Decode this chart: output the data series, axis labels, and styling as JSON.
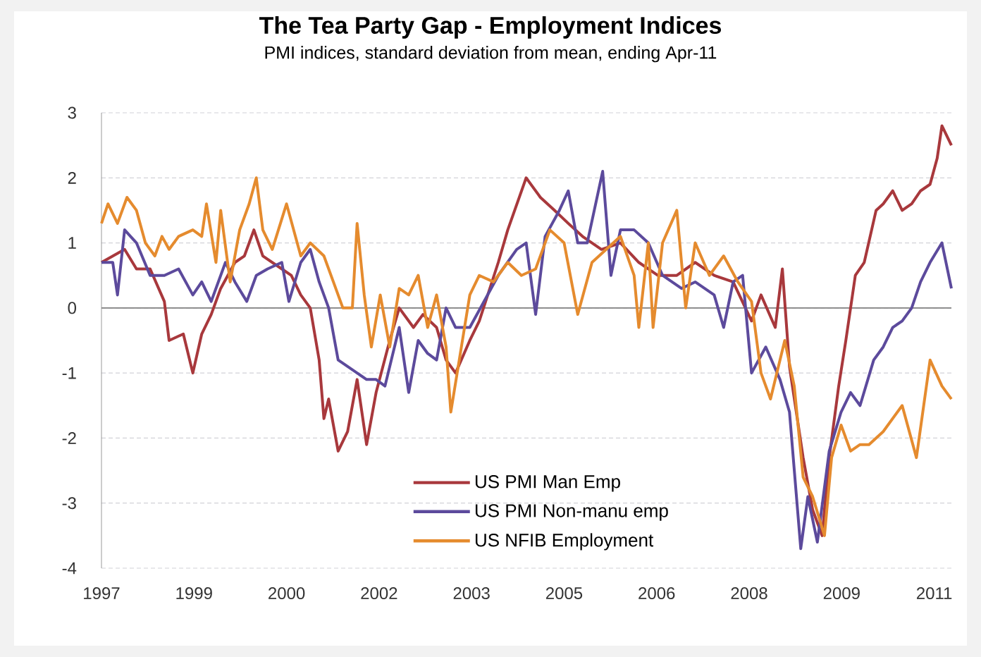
{
  "chart_data": {
    "type": "line",
    "title": "The Tea Party Gap - Employment Indices",
    "subtitle": "PMI indices, standard deviation from mean, ending Apr-11",
    "xlim": [
      1997.0,
      2011.33
    ],
    "xticks": [
      {
        "value": 1997.0,
        "label": "1997"
      },
      {
        "value": 1998.56,
        "label": "1999"
      },
      {
        "value": 2000.12,
        "label": "2000"
      },
      {
        "value": 2001.68,
        "label": "2002"
      },
      {
        "value": 2003.24,
        "label": "2003"
      },
      {
        "value": 2004.8,
        "label": "2005"
      },
      {
        "value": 2006.36,
        "label": "2006"
      },
      {
        "value": 2007.92,
        "label": "2008"
      },
      {
        "value": 2009.48,
        "label": "2009"
      },
      {
        "value": 2011.04,
        "label": "2011"
      }
    ],
    "ylim": [
      -4,
      3
    ],
    "yticks": [
      -4,
      -3,
      -2,
      -1,
      0,
      1,
      2,
      3
    ],
    "grid": "y",
    "legend": "bottom",
    "marker": "none",
    "line_style": "solid",
    "ref_lines": [
      {
        "axis": "y",
        "value": 0,
        "color": "#808080"
      }
    ],
    "series": [
      {
        "name": "US PMI Man Emp",
        "color": "#a8383c",
        "x": [
          1997.0,
          1997.39,
          1997.59,
          1997.82,
          1998.06,
          1998.14,
          1998.38,
          1998.54,
          1998.69,
          1998.85,
          1999.01,
          1999.25,
          1999.41,
          1999.57,
          1999.72,
          2000.04,
          2000.2,
          2000.36,
          2000.52,
          2000.67,
          2000.75,
          2000.83,
          2000.99,
          2001.15,
          2001.31,
          2001.47,
          2001.63,
          2001.86,
          2002.02,
          2002.26,
          2002.42,
          2002.65,
          2002.81,
          2002.97,
          2003.21,
          2003.37,
          2003.69,
          2003.85,
          2004.16,
          2004.4,
          2004.64,
          2004.87,
          2005.11,
          2005.43,
          2005.75,
          2006.06,
          2006.38,
          2006.7,
          2007.01,
          2007.33,
          2007.65,
          2007.96,
          2008.12,
          2008.36,
          2008.48,
          2008.6,
          2008.83,
          2008.99,
          2009.15,
          2009.27,
          2009.43,
          2009.55,
          2009.71,
          2009.86,
          2010.06,
          2010.18,
          2010.34,
          2010.5,
          2010.66,
          2010.81,
          2010.97,
          2011.09,
          2011.17,
          2011.33
        ],
        "values": [
          0.7,
          0.9,
          0.6,
          0.6,
          0.1,
          -0.5,
          -0.4,
          -1.0,
          -0.4,
          -0.1,
          0.3,
          0.7,
          0.8,
          1.2,
          0.8,
          0.6,
          0.5,
          0.2,
          0.0,
          -0.8,
          -1.7,
          -1.4,
          -2.2,
          -1.9,
          -1.1,
          -2.1,
          -1.3,
          -0.5,
          0.0,
          -0.3,
          -0.1,
          -0.3,
          -0.8,
          -1.0,
          -0.5,
          -0.2,
          0.7,
          1.2,
          2.0,
          1.7,
          1.5,
          1.3,
          1.1,
          0.9,
          1.0,
          0.7,
          0.5,
          0.5,
          0.7,
          0.5,
          0.4,
          -0.2,
          0.2,
          -0.3,
          0.6,
          -0.9,
          -2.3,
          -3.1,
          -3.5,
          -2.3,
          -1.2,
          -0.5,
          0.5,
          0.7,
          1.5,
          1.6,
          1.8,
          1.5,
          1.6,
          1.8,
          1.9,
          2.3,
          2.8,
          2.5
        ]
      },
      {
        "name": "US PMI Non-manu emp",
        "color": "#5c4a9c",
        "x": [
          1997.0,
          1997.19,
          1997.27,
          1997.39,
          1997.59,
          1997.82,
          1998.06,
          1998.3,
          1998.54,
          1998.69,
          1998.85,
          1999.09,
          1999.25,
          1999.45,
          1999.61,
          1999.8,
          2000.04,
          2000.16,
          2000.36,
          2000.52,
          2000.67,
          2000.83,
          2000.99,
          2001.15,
          2001.31,
          2001.47,
          2001.63,
          2001.78,
          2002.02,
          2002.18,
          2002.34,
          2002.5,
          2002.65,
          2002.81,
          2002.97,
          2003.21,
          2003.69,
          2004.0,
          2004.16,
          2004.32,
          2004.48,
          2004.72,
          2004.87,
          2005.03,
          2005.19,
          2005.45,
          2005.59,
          2005.75,
          2005.98,
          2006.22,
          2006.46,
          2006.78,
          2007.01,
          2007.33,
          2007.49,
          2007.65,
          2007.81,
          2007.96,
          2008.2,
          2008.44,
          2008.6,
          2008.79,
          2008.91,
          2009.07,
          2009.27,
          2009.47,
          2009.63,
          2009.79,
          2010.02,
          2010.18,
          2010.34,
          2010.5,
          2010.66,
          2010.81,
          2010.97,
          2011.17,
          2011.33
        ],
        "values": [
          0.7,
          0.7,
          0.2,
          1.2,
          1.0,
          0.5,
          0.5,
          0.6,
          0.2,
          0.4,
          0.1,
          0.7,
          0.4,
          0.1,
          0.5,
          0.6,
          0.7,
          0.1,
          0.7,
          0.9,
          0.4,
          0.0,
          -0.8,
          -0.9,
          -1.0,
          -1.1,
          -1.1,
          -1.2,
          -0.3,
          -1.3,
          -0.5,
          -0.7,
          -0.8,
          0.0,
          -0.3,
          -0.3,
          0.5,
          0.9,
          1.0,
          -0.1,
          1.1,
          1.5,
          1.8,
          1.0,
          1.0,
          2.1,
          0.5,
          1.2,
          1.2,
          1.0,
          0.5,
          0.3,
          0.4,
          0.2,
          -0.3,
          0.4,
          0.5,
          -1.0,
          -0.6,
          -1.1,
          -1.6,
          -3.7,
          -2.9,
          -3.6,
          -2.2,
          -1.6,
          -1.3,
          -1.5,
          -0.8,
          -0.6,
          -0.3,
          -0.2,
          0.0,
          0.4,
          0.7,
          1.0,
          0.3
        ]
      },
      {
        "name": "US NFIB Employment",
        "color": "#e58b2e",
        "x": [
          1997.0,
          1997.11,
          1997.27,
          1997.43,
          1997.59,
          1997.74,
          1997.9,
          1998.02,
          1998.14,
          1998.3,
          1998.54,
          1998.69,
          1998.77,
          1998.93,
          1999.01,
          1999.17,
          1999.33,
          1999.49,
          1999.61,
          1999.72,
          1999.88,
          2000.12,
          2000.36,
          2000.52,
          2000.75,
          2000.91,
          2001.07,
          2001.23,
          2001.31,
          2001.43,
          2001.55,
          2001.7,
          2001.86,
          2002.02,
          2002.18,
          2002.34,
          2002.5,
          2002.65,
          2002.81,
          2002.89,
          2003.05,
          2003.21,
          2003.37,
          2003.61,
          2003.85,
          2004.08,
          2004.32,
          2004.56,
          2004.8,
          2005.03,
          2005.27,
          2005.51,
          2005.75,
          2005.98,
          2006.06,
          2006.22,
          2006.3,
          2006.46,
          2006.7,
          2006.85,
          2007.01,
          2007.25,
          2007.49,
          2007.73,
          2007.96,
          2008.12,
          2008.28,
          2008.52,
          2008.68,
          2008.83,
          2008.99,
          2009.19,
          2009.31,
          2009.47,
          2009.63,
          2009.79,
          2009.94,
          2010.18,
          2010.5,
          2010.74,
          2010.97,
          2011.17,
          2011.33
        ],
        "values": [
          1.3,
          1.6,
          1.3,
          1.7,
          1.5,
          1.0,
          0.8,
          1.1,
          0.9,
          1.1,
          1.2,
          1.1,
          1.6,
          0.7,
          1.5,
          0.4,
          1.2,
          1.6,
          2.0,
          1.2,
          0.9,
          1.6,
          0.8,
          1.0,
          0.8,
          0.4,
          0.0,
          0.0,
          1.3,
          0.2,
          -0.6,
          0.2,
          -0.6,
          0.3,
          0.2,
          0.5,
          -0.3,
          0.2,
          -0.6,
          -1.6,
          -0.7,
          0.2,
          0.5,
          0.4,
          0.7,
          0.5,
          0.6,
          1.2,
          1.0,
          -0.1,
          0.7,
          0.9,
          1.1,
          0.5,
          -0.3,
          1.0,
          -0.3,
          1.0,
          1.5,
          0.0,
          1.0,
          0.5,
          0.8,
          0.4,
          0.1,
          -1.0,
          -1.4,
          -0.5,
          -1.2,
          -2.6,
          -2.9,
          -3.5,
          -2.3,
          -1.8,
          -2.2,
          -2.1,
          -2.1,
          -1.9,
          -1.5,
          -2.3,
          -0.8,
          -1.2,
          -1.4
        ]
      }
    ]
  }
}
